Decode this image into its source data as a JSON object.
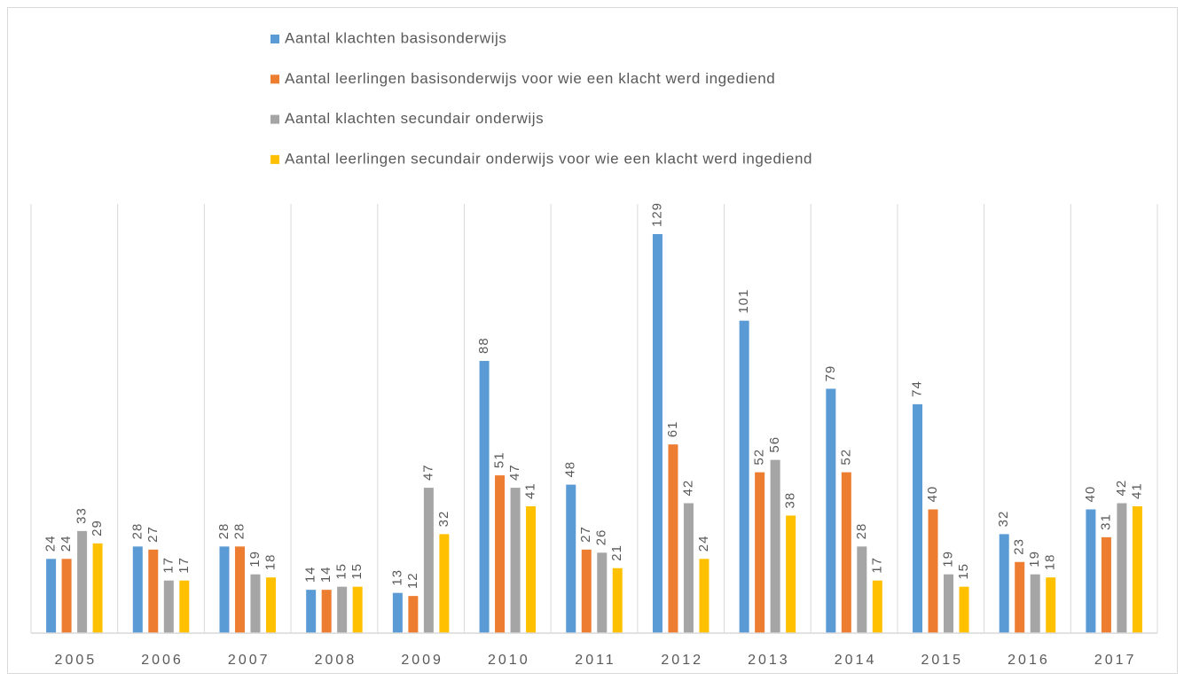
{
  "chart_data": {
    "type": "bar",
    "categories": [
      "2005",
      "2006",
      "2007",
      "2008",
      "2009",
      "2010",
      "2011",
      "2012",
      "2013",
      "2014",
      "2015",
      "2016",
      "2017"
    ],
    "series": [
      {
        "name": "Aantal klachten basisonderwijs",
        "color": "#5b9bd5",
        "values": [
          24,
          28,
          28,
          14,
          13,
          88,
          48,
          129,
          101,
          79,
          74,
          32,
          40
        ]
      },
      {
        "name": "Aantal leerlingen basisonderwijs voor wie een klacht werd ingediend",
        "color": "#ed7d31",
        "values": [
          24,
          27,
          28,
          14,
          12,
          51,
          27,
          61,
          52,
          52,
          40,
          23,
          31
        ]
      },
      {
        "name": "Aantal klachten secundair onderwijs",
        "color": "#a5a5a5",
        "values": [
          33,
          17,
          19,
          15,
          47,
          47,
          26,
          42,
          56,
          28,
          19,
          19,
          42
        ]
      },
      {
        "name": "Aantal leerlingen secundair onderwijs voor wie een klacht werd ingediend",
        "color": "#ffc000",
        "values": [
          29,
          17,
          18,
          15,
          32,
          41,
          21,
          24,
          38,
          17,
          15,
          18,
          41
        ]
      }
    ],
    "legend": "top",
    "grid": false
  }
}
